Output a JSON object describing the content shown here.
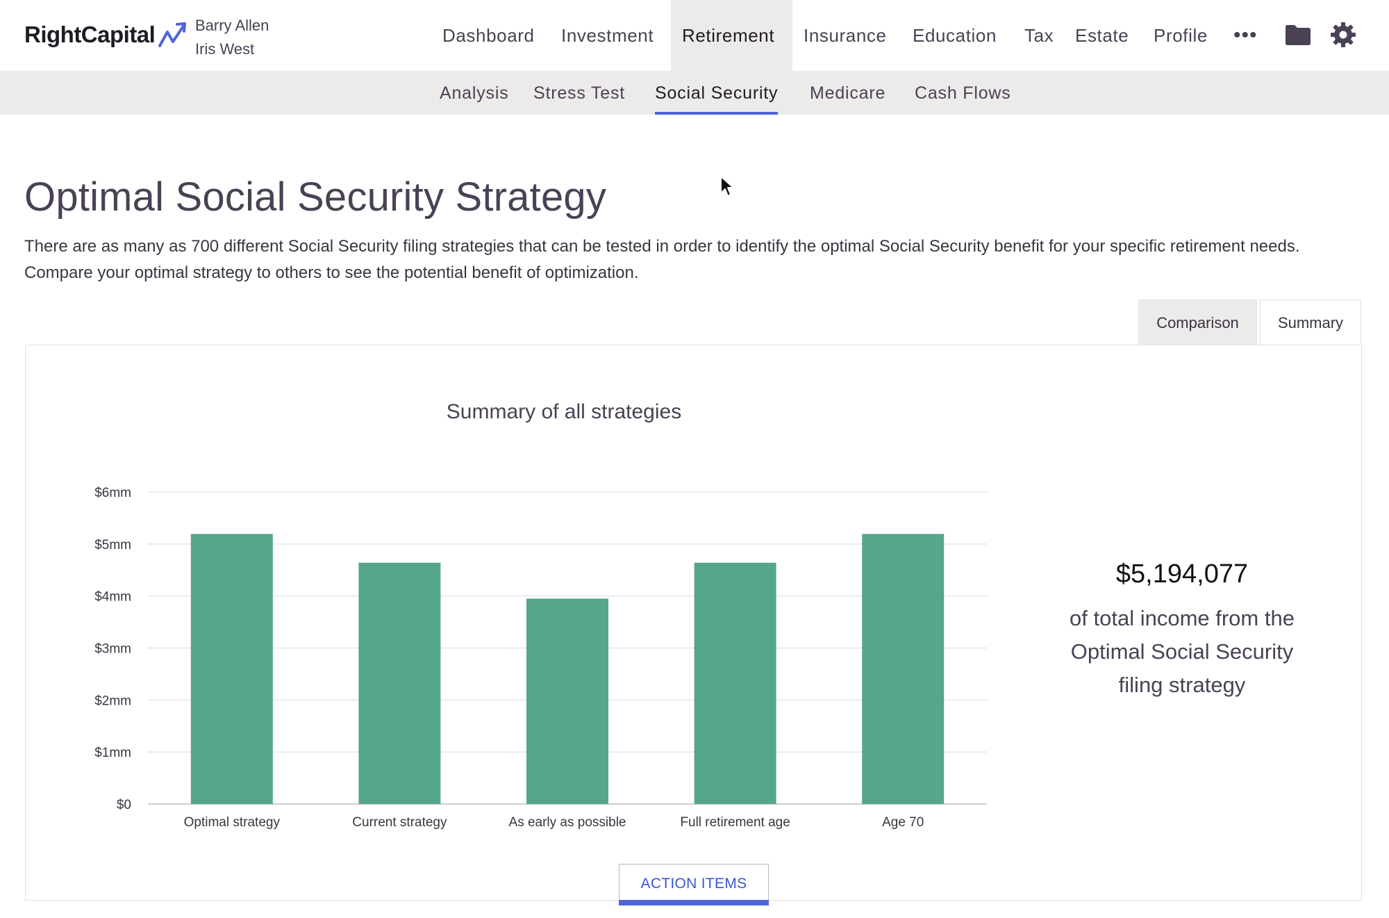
{
  "header": {
    "logo_text": "RightCapital",
    "clients": [
      "Barry Allen",
      "Iris West"
    ],
    "nav": [
      {
        "label": "Dashboard",
        "active": false
      },
      {
        "label": "Investment",
        "active": false
      },
      {
        "label": "Retirement",
        "active": true
      },
      {
        "label": "Insurance",
        "active": false
      },
      {
        "label": "Education",
        "active": false
      },
      {
        "label": "Tax",
        "active": false
      },
      {
        "label": "Estate",
        "active": false
      },
      {
        "label": "Profile",
        "active": false
      }
    ],
    "more_label": "•••",
    "icons": [
      "more-icon",
      "folder-icon",
      "gear-icon"
    ]
  },
  "subnav": [
    {
      "label": "Analysis",
      "active": false
    },
    {
      "label": "Stress Test",
      "active": false
    },
    {
      "label": "Social Security",
      "active": true
    },
    {
      "label": "Medicare",
      "active": false
    },
    {
      "label": "Cash Flows",
      "active": false
    }
  ],
  "main": {
    "title": "Optimal Social Security Strategy",
    "description": "There are as many as 700 different Social Security filing strategies that can be tested in order to identify the optimal Social Security benefit for your specific retirement needs. Compare your optimal strategy to others to see the potential benefit of optimization.",
    "tabs": [
      {
        "label": "Comparison",
        "active": false
      },
      {
        "label": "Summary",
        "active": true
      }
    ],
    "summary": {
      "amount": "$5,194,077",
      "text_lines": [
        "of total income from the",
        "Optimal Social Security",
        "filing strategy"
      ]
    },
    "action_button": "ACTION ITEMS"
  },
  "colors": {
    "bar": "#55a68b",
    "accent": "#4f66d8",
    "nav_bg": "#ecebe9"
  },
  "chart_data": {
    "type": "bar",
    "title": "Summary of all strategies",
    "categories": [
      "Optimal strategy",
      "Current strategy",
      "As early as possible",
      "Full retirement age",
      "Age 70"
    ],
    "values": [
      5194077,
      4640000,
      3950000,
      4640000,
      5194077
    ],
    "ylim": [
      0,
      6000000
    ],
    "yticks": [
      0,
      1000000,
      2000000,
      3000000,
      4000000,
      5000000,
      6000000
    ],
    "ytick_labels": [
      "$0",
      "$1mm",
      "$2mm",
      "$3mm",
      "$4mm",
      "$5mm",
      "$6mm"
    ],
    "xlabel": "",
    "ylabel": "",
    "grid": true
  }
}
